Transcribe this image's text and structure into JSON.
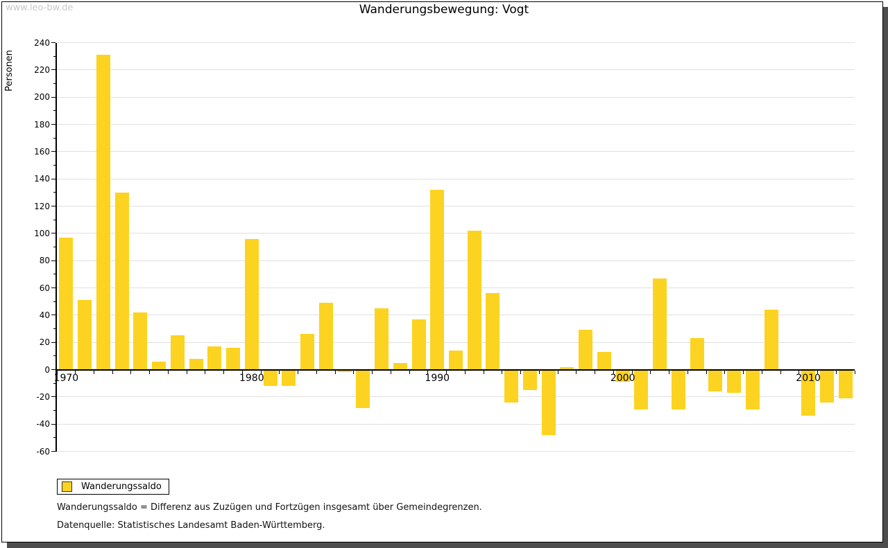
{
  "watermark": "www.leo-bw.de",
  "title": "Wanderungsbewegung: Vogt",
  "y_axis_label": "Personen",
  "legend": {
    "label": "Wanderungssaldo"
  },
  "footnotes": [
    "Wanderungssaldo = Differenz aus Zuzügen und Fortzügen insgesamt über Gemeindegrenzen.",
    "Datenquelle: Statistisches Landesamt Baden-Württemberg."
  ],
  "colors": {
    "bar": "#FCD320",
    "grid": "#E0E0E0",
    "axis": "#000000",
    "watermark": "#C9C9C9",
    "shadow": "#4D4D4D"
  },
  "chart_data": {
    "type": "bar",
    "title": "Wanderungsbewegung: Vogt",
    "ylabel": "Personen",
    "series_name": "Wanderungssaldo",
    "x": [
      1970,
      1971,
      1972,
      1973,
      1974,
      1975,
      1976,
      1977,
      1978,
      1979,
      1980,
      1981,
      1982,
      1983,
      1984,
      1985,
      1986,
      1987,
      1988,
      1989,
      1990,
      1991,
      1992,
      1993,
      1994,
      1995,
      1996,
      1997,
      1998,
      1999,
      2000,
      2001,
      2002,
      2003,
      2004,
      2005,
      2006,
      2007,
      2008,
      2009,
      2010,
      2011,
      2012
    ],
    "values": [
      97,
      51,
      231,
      130,
      42,
      6,
      25,
      8,
      17,
      16,
      96,
      -12,
      -12,
      26,
      49,
      -2,
      -28,
      45,
      5,
      37,
      132,
      14,
      102,
      56,
      -24,
      -15,
      -48,
      2,
      29,
      13,
      -9,
      -29,
      67,
      -29,
      23,
      -16,
      -17,
      -29,
      44,
      0,
      -34,
      -24,
      -21
    ],
    "ylim": [
      -60,
      240
    ],
    "ytick_step": 20,
    "xtick_labels": [
      "1970",
      "1980",
      "1990",
      "2000",
      "2010"
    ],
    "grid": true,
    "legend_position": "bottom-left"
  }
}
